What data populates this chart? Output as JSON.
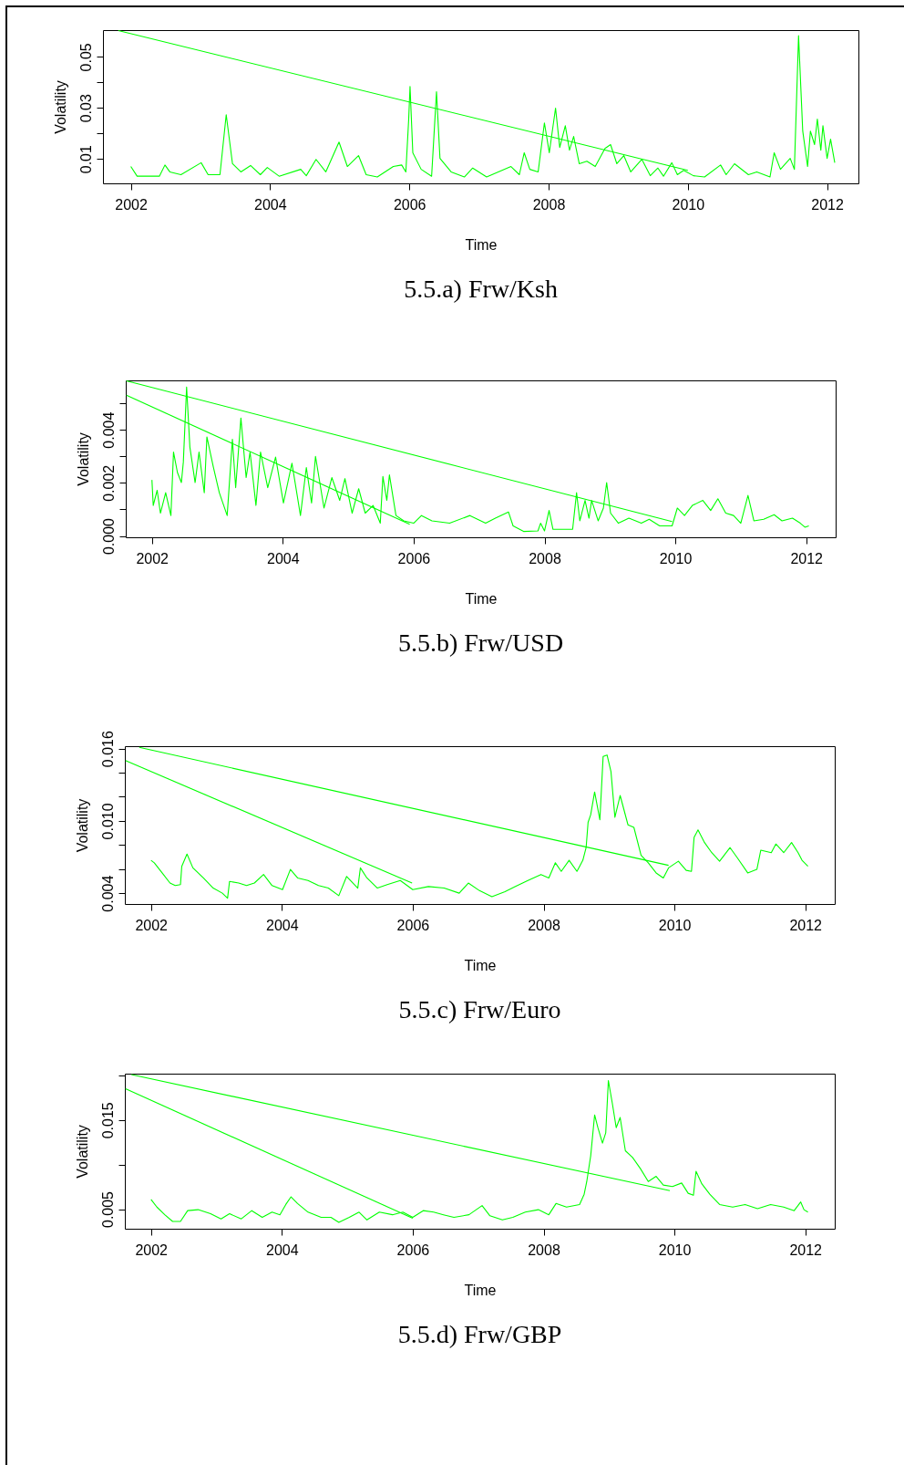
{
  "chart_data": [
    {
      "type": "line",
      "title": "5.5.a) Frw/Ksh",
      "xlabel": "Time",
      "ylabel": "Volatility",
      "xlim": [
        2001.6,
        2012.45
      ],
      "ylim": [
        0.0004,
        0.0605
      ],
      "xticks": [
        2002,
        2004,
        2006,
        2008,
        2010,
        2012
      ],
      "yticks": [
        0.01,
        {
          "value": 0.02,
          "label": null
        },
        0.03,
        {
          "value": 0.04,
          "label": null
        },
        0.05
      ],
      "grid": false,
      "series": [
        {
          "color": "#00ff00",
          "x": [
            2002.0,
            2002.09,
            2002.41,
            2002.49,
            2002.56,
            2002.72,
            2003.01,
            2003.11,
            2003.28,
            2003.37,
            2003.46,
            2003.58,
            2003.72,
            2003.86,
            2003.96,
            2004.13,
            2004.44,
            2004.52,
            2004.66,
            2004.8,
            2004.99,
            2005.11,
            2005.27,
            2005.38,
            2005.54,
            2005.77,
            2005.89,
            2005.95,
            2005.99,
            2006.01,
            2006.05,
            2006.17,
            2006.32,
            2006.39,
            2006.44,
            2006.6,
            2006.79,
            2006.91,
            2007.11,
            2007.46,
            2007.58,
            2007.65,
            2007.73,
            2007.85,
            2007.94,
            2008.01,
            2008.1,
            2008.16,
            2008.24,
            2008.3,
            2008.36,
            2008.44,
            2008.55,
            2008.67,
            2008.81,
            2008.89,
            2008.98,
            2009.08,
            2009.18,
            2009.34,
            2009.46,
            2009.57,
            2009.65,
            2009.77,
            2009.85,
            2009.94,
            2010.08,
            2010.24,
            2010.47,
            2010.55,
            2010.67,
            2010.87,
            2010.99,
            2011.18,
            2011.24,
            2011.33,
            2011.47,
            2011.53,
            2011.59,
            2011.65,
            2011.72,
            2011.76,
            2011.82,
            2011.86,
            2011.91,
            2011.94,
            2012.0,
            2012.05,
            2012.11
          ],
          "values": [
            0.007,
            0.0032,
            0.0032,
            0.0076,
            0.0049,
            0.0038,
            0.0085,
            0.0038,
            0.0038,
            0.0273,
            0.0081,
            0.0049,
            0.0074,
            0.0038,
            0.0066,
            0.0032,
            0.0059,
            0.0034,
            0.0098,
            0.0049,
            0.0166,
            0.007,
            0.0113,
            0.0038,
            0.0029,
            0.007,
            0.0076,
            0.0049,
            0.0252,
            0.0384,
            0.0124,
            0.0059,
            0.0032,
            0.0363,
            0.0102,
            0.0049,
            0.0029,
            0.0064,
            0.0029,
            0.007,
            0.0038,
            0.0124,
            0.0059,
            0.0049,
            0.0241,
            0.0124,
            0.0299,
            0.0145,
            0.023,
            0.0134,
            0.0188,
            0.0081,
            0.0091,
            0.007,
            0.0141,
            0.0156,
            0.0081,
            0.0113,
            0.0049,
            0.0098,
            0.0034,
            0.0064,
            0.0032,
            0.0085,
            0.0038,
            0.0055,
            0.0034,
            0.0029,
            0.0076,
            0.0038,
            0.0081,
            0.0038,
            0.0049,
            0.0029,
            0.0124,
            0.0059,
            0.0102,
            0.0059,
            0.0583,
            0.0209,
            0.007,
            0.0209,
            0.0156,
            0.0256,
            0.0134,
            0.023,
            0.0102,
            0.0177,
            0.0085
          ]
        },
        {
          "color": "#00ff00",
          "x": [
            2001.82,
            2010.0
          ],
          "values": [
            0.0603,
            0.0055
          ]
        }
      ]
    },
    {
      "type": "line",
      "title": "5.5.b) Frw/USD",
      "xlabel": "Time",
      "ylabel": "Volatility",
      "xlim": [
        2001.6,
        2012.45
      ],
      "ylim": [
        -5e-05,
        0.00586
      ],
      "xticks": [
        2002,
        2004,
        2006,
        2008,
        2010,
        2012
      ],
      "yticks": [
        {
          "value": 0,
          "label": "0.000"
        },
        {
          "value": 0.001,
          "label": null
        },
        0.002,
        {
          "value": 0.003,
          "label": null
        },
        0.004,
        {
          "value": 0.005,
          "label": null
        }
      ],
      "grid": false,
      "series": [
        {
          "color": "#00ff00",
          "x": [
            2002.0,
            2002.02,
            2002.08,
            2002.13,
            2002.21,
            2002.29,
            2002.33,
            2002.39,
            2002.45,
            2002.48,
            2002.53,
            2002.58,
            2002.66,
            2002.72,
            2002.8,
            2002.84,
            2002.94,
            2003.03,
            2003.15,
            2003.23,
            2003.28,
            2003.36,
            2003.44,
            2003.5,
            2003.59,
            2003.66,
            2003.77,
            2003.89,
            2004.01,
            2004.14,
            2004.27,
            2004.36,
            2004.44,
            2004.5,
            2004.63,
            2004.75,
            2004.87,
            2004.95,
            2005.06,
            2005.16,
            2005.26,
            2005.38,
            2005.49,
            2005.53,
            2005.59,
            2005.63,
            2005.73,
            2005.85,
            2006.0,
            2006.12,
            2006.28,
            2006.55,
            2006.86,
            2007.1,
            2007.25,
            2007.45,
            2007.52,
            2007.68,
            2007.9,
            2007.94,
            2008.0,
            2008.07,
            2008.13,
            2008.43,
            2008.49,
            2008.54,
            2008.62,
            2008.68,
            2008.72,
            2008.82,
            2008.9,
            2008.95,
            2009.01,
            2009.13,
            2009.29,
            2009.48,
            2009.6,
            2009.76,
            2009.95,
            2010.03,
            2010.14,
            2010.26,
            2010.42,
            2010.54,
            2010.65,
            2010.77,
            2010.89,
            2011.0,
            2011.11,
            2011.2,
            2011.35,
            2011.51,
            2011.63,
            2011.79,
            2011.91,
            2011.98,
            2012.04
          ],
          "values": [
            0.00211,
            0.00115,
            0.00172,
            0.00086,
            0.00163,
            0.00077,
            0.00316,
            0.00239,
            0.00201,
            0.00278,
            0.00561,
            0.00335,
            0.00201,
            0.00316,
            0.00163,
            0.00373,
            0.00258,
            0.00163,
            0.00077,
            0.00364,
            0.00182,
            0.00444,
            0.0022,
            0.00316,
            0.00115,
            0.00316,
            0.00182,
            0.00297,
            0.00124,
            0.00274,
            0.00077,
            0.00258,
            0.00124,
            0.003,
            0.00105,
            0.0022,
            0.00134,
            0.00216,
            0.00086,
            0.00178,
            0.00086,
            0.00115,
            0.00048,
            0.00224,
            0.00134,
            0.0023,
            0.00077,
            0.00057,
            0.00048,
            0.00077,
            0.00057,
            0.00048,
            0.00077,
            0.00048,
            0.00067,
            0.0009,
            0.00038,
            0.00017,
            0.00019,
            0.00048,
            0.00019,
            0.00096,
            0.00025,
            0.00025,
            0.00163,
            0.00057,
            0.00134,
            0.00067,
            0.00134,
            0.00057,
            0.00105,
            0.00201,
            0.00086,
            0.00048,
            0.00067,
            0.00048,
            0.00063,
            0.00038,
            0.00038,
            0.00105,
            0.00077,
            0.00115,
            0.00134,
            0.00096,
            0.0014,
            0.00086,
            0.00077,
            0.00048,
            0.00153,
            0.00057,
            0.00063,
            0.0008,
            0.00057,
            0.00067,
            0.00048,
            0.00033,
            0.00038
          ]
        },
        {
          "color": "#00ff00",
          "x": [
            2001.61,
            2009.95
          ],
          "values": [
            0.00584,
            0.00054
          ]
        },
        {
          "color": "#00ff00",
          "x": [
            2001.61,
            2005.94
          ],
          "values": [
            0.0053,
            0.00044
          ]
        }
      ]
    },
    {
      "type": "line",
      "title": "5.5.c) Frw/Euro",
      "xlabel": "Time",
      "ylabel": "Volatility",
      "xlim": [
        2001.6,
        2012.45
      ],
      "ylim": [
        0.0031,
        0.0162
      ],
      "xticks": [
        2002,
        2004,
        2006,
        2008,
        2010,
        2012
      ],
      "yticks": [
        0.004,
        {
          "value": 0.006,
          "label": null
        },
        {
          "value": 0.008,
          "label": null
        },
        {
          "value": 0.01,
          "label": "0.010"
        },
        {
          "value": 0.012,
          "label": null
        },
        {
          "value": 0.014,
          "label": null
        },
        0.016
      ],
      "grid": false,
      "series": [
        {
          "color": "#00ff00",
          "x": [
            2002.0,
            2002.05,
            2002.17,
            2002.29,
            2002.37,
            2002.45,
            2002.47,
            2002.55,
            2002.64,
            2002.8,
            2002.95,
            2003.09,
            2003.17,
            2003.2,
            2003.34,
            2003.46,
            2003.58,
            2003.72,
            2003.85,
            2004.01,
            2004.13,
            2004.24,
            2004.4,
            2004.56,
            2004.71,
            2004.87,
            2004.99,
            2005.16,
            2005.2,
            2005.3,
            2005.46,
            2005.61,
            2005.81,
            2006.0,
            2006.24,
            2006.48,
            2006.71,
            2006.85,
            2007.02,
            2007.21,
            2007.41,
            2007.57,
            2007.76,
            2007.96,
            2008.08,
            2008.18,
            2008.27,
            2008.39,
            2008.51,
            2008.6,
            2008.65,
            2008.68,
            2008.72,
            2008.78,
            2008.86,
            2008.91,
            2008.97,
            2009.03,
            2009.09,
            2009.17,
            2009.29,
            2009.38,
            2009.49,
            2009.6,
            2009.72,
            2009.83,
            2009.91,
            2010.06,
            2010.18,
            2010.26,
            2010.3,
            2010.36,
            2010.46,
            2010.57,
            2010.69,
            2010.85,
            2010.96,
            2011.12,
            2011.26,
            2011.32,
            2011.48,
            2011.55,
            2011.67,
            2011.79,
            2011.89,
            2011.95,
            2012.04
          ],
          "values": [
            0.00673,
            0.00652,
            0.00568,
            0.00484,
            0.00463,
            0.00471,
            0.00623,
            0.00724,
            0.0061,
            0.00526,
            0.00442,
            0.004,
            0.00358,
            0.00497,
            0.00484,
            0.00463,
            0.00484,
            0.00555,
            0.00463,
            0.00429,
            0.00597,
            0.00526,
            0.00505,
            0.00463,
            0.00442,
            0.00379,
            0.00539,
            0.00442,
            0.0061,
            0.00526,
            0.00442,
            0.00471,
            0.00505,
            0.00429,
            0.00455,
            0.00442,
            0.004,
            0.00484,
            0.00421,
            0.00371,
            0.00413,
            0.00455,
            0.00505,
            0.00555,
            0.00526,
            0.00652,
            0.00581,
            0.00673,
            0.00581,
            0.00673,
            0.00778,
            0.00988,
            0.01051,
            0.0124,
            0.01009,
            0.01534,
            0.01547,
            0.01408,
            0.0103,
            0.01211,
            0.00967,
            0.00946,
            0.00715,
            0.00652,
            0.00568,
            0.00526,
            0.0061,
            0.00665,
            0.00589,
            0.00581,
            0.00862,
            0.00925,
            0.0082,
            0.00736,
            0.00665,
            0.00778,
            0.00694,
            0.00568,
            0.00597,
            0.00757,
            0.00736,
            0.00808,
            0.00736,
            0.0082,
            0.00736,
            0.00673,
            0.00623
          ]
        },
        {
          "color": "#00ff00",
          "x": [
            2001.82,
            2009.91
          ],
          "values": [
            0.0161,
            0.00631
          ]
        },
        {
          "color": "#00ff00",
          "x": [
            2001.61,
            2005.99
          ],
          "values": [
            0.015,
            0.00484
          ]
        }
      ]
    },
    {
      "type": "line",
      "title": "5.5.d) Frw/GBP",
      "xlabel": "Time",
      "ylabel": "Volatility",
      "xlim": [
        2001.6,
        2012.45
      ],
      "ylim": [
        0.0028,
        0.0202
      ],
      "xticks": [
        2002,
        2004,
        2006,
        2008,
        2010,
        2012
      ],
      "yticks": [
        0.005,
        {
          "value": 0.01,
          "label": null
        },
        0.015,
        {
          "value": 0.02,
          "label": null
        }
      ],
      "grid": false,
      "series": [
        {
          "color": "#00ff00",
          "x": [
            2002.0,
            2002.09,
            2002.21,
            2002.33,
            2002.45,
            2002.56,
            2002.72,
            2002.91,
            2003.07,
            2003.2,
            2003.38,
            2003.54,
            2003.7,
            2003.85,
            2003.97,
            2004.06,
            2004.14,
            2004.24,
            2004.4,
            2004.6,
            2004.75,
            2004.87,
            2005.03,
            2005.18,
            2005.3,
            2005.49,
            2005.69,
            2005.85,
            2006.0,
            2006.16,
            2006.32,
            2006.47,
            2006.63,
            2006.86,
            2007.06,
            2007.18,
            2007.37,
            2007.53,
            2007.72,
            2007.92,
            2008.08,
            2008.19,
            2008.35,
            2008.55,
            2008.62,
            2008.66,
            2008.72,
            2008.78,
            2008.83,
            2008.9,
            2008.95,
            2008.99,
            2009.05,
            2009.11,
            2009.17,
            2009.25,
            2009.36,
            2009.48,
            2009.6,
            2009.72,
            2009.83,
            2009.97,
            2010.11,
            2010.21,
            2010.29,
            2010.33,
            2010.42,
            2010.54,
            2010.69,
            2010.89,
            2011.08,
            2011.27,
            2011.47,
            2011.67,
            2011.83,
            2011.93,
            2011.98,
            2012.04
          ],
          "values": [
            0.00609,
            0.00523,
            0.00437,
            0.00362,
            0.00362,
            0.00483,
            0.00494,
            0.00448,
            0.00391,
            0.00448,
            0.00391,
            0.00483,
            0.00408,
            0.00466,
            0.00437,
            0.00552,
            0.00638,
            0.00563,
            0.00466,
            0.00408,
            0.00408,
            0.00351,
            0.00408,
            0.00466,
            0.00379,
            0.00466,
            0.00437,
            0.00466,
            0.00408,
            0.00483,
            0.00466,
            0.00437,
            0.00408,
            0.00437,
            0.0054,
            0.00425,
            0.00379,
            0.00408,
            0.00466,
            0.00494,
            0.00437,
            0.00563,
            0.00523,
            0.00552,
            0.00667,
            0.0081,
            0.01098,
            0.01557,
            0.01414,
            0.01241,
            0.01356,
            0.01943,
            0.0169,
            0.01414,
            0.01529,
            0.01155,
            0.0108,
            0.00954,
            0.0081,
            0.00868,
            0.0077,
            0.00753,
            0.00793,
            0.00678,
            0.00655,
            0.00925,
            0.00782,
            0.00667,
            0.00552,
            0.00523,
            0.00552,
            0.00506,
            0.00552,
            0.00523,
            0.00483,
            0.0058,
            0.00494,
            0.00466
          ]
        },
        {
          "color": "#00ff00",
          "x": [
            2001.7,
            2009.93
          ],
          "values": [
            0.0201,
            0.00707
          ]
        },
        {
          "color": "#00ff00",
          "x": [
            2001.61,
            2006.0
          ],
          "values": [
            0.01851,
            0.00397
          ]
        }
      ]
    }
  ]
}
